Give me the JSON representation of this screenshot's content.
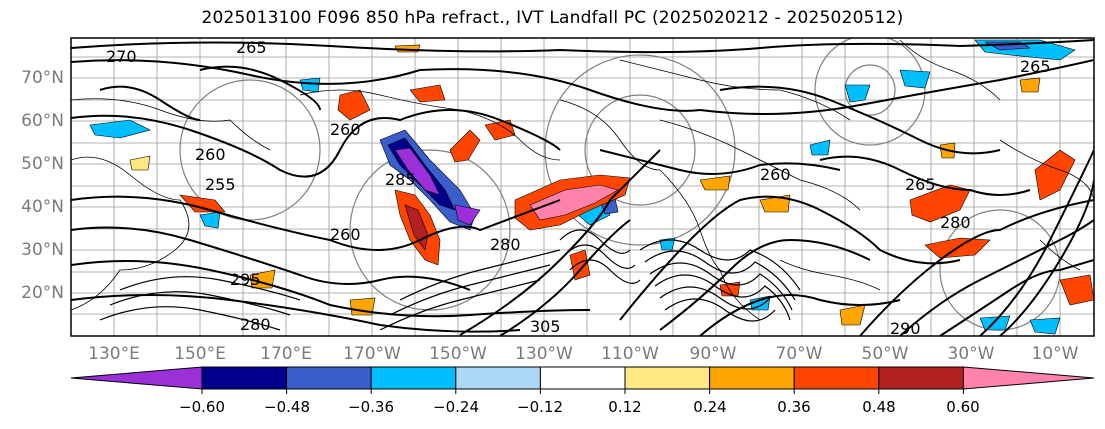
{
  "title": "2025013100 F096 850 hPa refract., IVT Landfall PC (2025020212 - 2025020512)",
  "latitude_labels": [
    "70°N",
    "60°N",
    "50°N",
    "40°N",
    "30°N",
    "20°N"
  ],
  "longitude_labels": [
    "130°E",
    "150°E",
    "170°E",
    "170°W",
    "150°W",
    "130°W",
    "110°W",
    "90°W",
    "70°W",
    "50°W",
    "30°W",
    "10°W"
  ],
  "contour_labels": [
    "265",
    "270",
    "260",
    "255",
    "260",
    "260",
    "285",
    "280",
    "295",
    "280",
    "305",
    "290",
    "265",
    "265",
    "260",
    "280"
  ],
  "colorbar": {
    "ticks": [
      "−0.60",
      "−0.48",
      "−0.36",
      "−0.24",
      "−0.12",
      "0.12",
      "0.24",
      "0.36",
      "0.48",
      "0.60"
    ],
    "colors": [
      "#9b30d9",
      "#00008b",
      "#3a5fcd",
      "#00bfff",
      "#add8f5",
      "#ffffff",
      "#ffe880",
      "#ffa500",
      "#ff4500",
      "#b22222",
      "#ff82ab",
      "#ff82ab"
    ]
  }
}
